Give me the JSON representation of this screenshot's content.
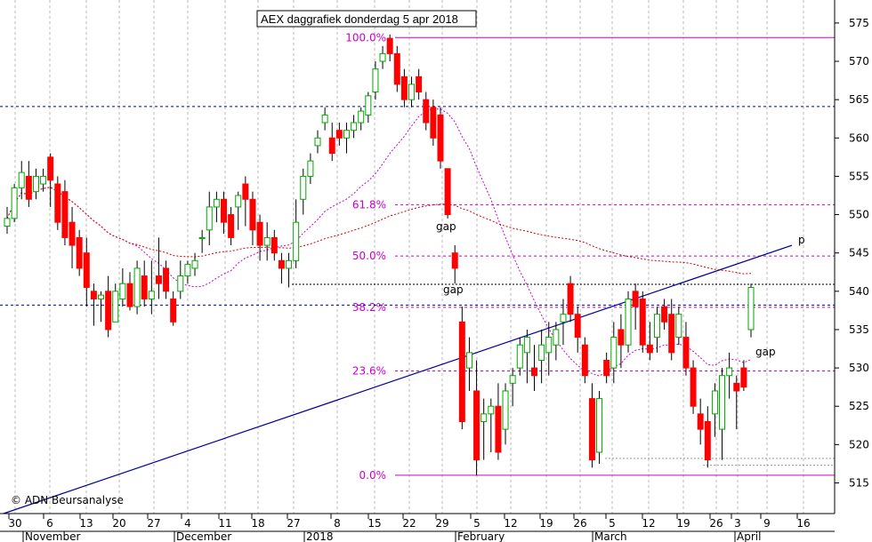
{
  "chart_data": {
    "type": "candlestick",
    "title": "AEX daggrafiek donderdag 5 apr 2018",
    "watermark": "© ADN Beursanalyse",
    "ylim": [
      511,
      578
    ],
    "yticks": [
      515,
      520,
      525,
      530,
      535,
      540,
      545,
      550,
      555,
      560,
      565,
      570,
      575
    ],
    "ytick_labels": [
      "515",
      "520",
      "525",
      "530",
      "535",
      "540",
      "545",
      "550",
      "555",
      "560",
      "565",
      "570",
      "575"
    ],
    "day_ticks": [
      "30",
      "6",
      "13",
      "20",
      "27",
      "4",
      "11",
      "18",
      "27",
      "8",
      "15",
      "22",
      "29",
      "5",
      "12",
      "19",
      "26",
      "5",
      "12",
      "19",
      "26",
      "3",
      "9",
      "16"
    ],
    "month_labels": [
      "November",
      "December",
      "2018",
      "February",
      "March",
      "April"
    ],
    "fib_levels": [
      {
        "label": "100.0%",
        "value": 573.1
      },
      {
        "label": "61.8%",
        "value": 551.3
      },
      {
        "label": "50.0%",
        "value": 544.6
      },
      {
        "label": "38.2%",
        "value": 537.9
      },
      {
        "label": "23.6%",
        "value": 529.6
      },
      {
        "label": "0.0%",
        "value": 516.0
      }
    ],
    "horizontal_levels": [
      564.1,
      538.2,
      540.9
    ],
    "trendline": {
      "label": "p",
      "start": 511.0,
      "end": 546.0
    },
    "annotations": [
      "gap",
      "gap",
      "gap"
    ],
    "colors": {
      "up": "#00aa00",
      "down": "#ff0000",
      "fib": "#cc00cc",
      "trend": "#000099",
      "level": "#000099",
      "ma_short": "#cc00cc",
      "ma_long": "#cc0000",
      "grid": "#b8b8b8"
    },
    "candles": [
      {
        "o": 548.5,
        "h": 551,
        "l": 547.5,
        "c": 549.5
      },
      {
        "o": 549.5,
        "h": 554,
        "l": 549,
        "c": 553.5
      },
      {
        "o": 553.5,
        "h": 557,
        "l": 552,
        "c": 555.5
      },
      {
        "o": 555,
        "h": 557,
        "l": 551,
        "c": 552
      },
      {
        "o": 553,
        "h": 556,
        "l": 552,
        "c": 555
      },
      {
        "o": 554,
        "h": 556,
        "l": 553,
        "c": 555
      },
      {
        "o": 557.5,
        "h": 558,
        "l": 551,
        "c": 554.5
      },
      {
        "o": 554,
        "h": 555,
        "l": 548,
        "c": 549
      },
      {
        "o": 553,
        "h": 554.5,
        "l": 546,
        "c": 547
      },
      {
        "o": 549,
        "h": 551,
        "l": 543,
        "c": 546
      },
      {
        "o": 547,
        "h": 548,
        "l": 542,
        "c": 543
      },
      {
        "o": 545,
        "h": 547,
        "l": 538,
        "c": 540.5
      },
      {
        "o": 540,
        "h": 541,
        "l": 535.5,
        "c": 539
      },
      {
        "o": 539,
        "h": 540,
        "l": 536,
        "c": 539.5
      },
      {
        "o": 540,
        "h": 542,
        "l": 534,
        "c": 535
      },
      {
        "o": 536,
        "h": 541,
        "l": 536,
        "c": 540
      },
      {
        "o": 539,
        "h": 543,
        "l": 538,
        "c": 541
      },
      {
        "o": 541,
        "h": 542.5,
        "l": 537.5,
        "c": 538
      },
      {
        "o": 538,
        "h": 544,
        "l": 537,
        "c": 543
      },
      {
        "o": 542,
        "h": 544,
        "l": 538,
        "c": 539
      },
      {
        "o": 539,
        "h": 544,
        "l": 537,
        "c": 540
      },
      {
        "o": 542,
        "h": 547,
        "l": 539,
        "c": 541
      },
      {
        "o": 543,
        "h": 544,
        "l": 539,
        "c": 540
      },
      {
        "o": 539,
        "h": 540,
        "l": 535.5,
        "c": 536
      },
      {
        "o": 540,
        "h": 544,
        "l": 539,
        "c": 542
      },
      {
        "o": 542,
        "h": 544,
        "l": 541,
        "c": 543.5
      },
      {
        "o": 543,
        "h": 545,
        "l": 542,
        "c": 544
      },
      {
        "o": 547,
        "h": 548,
        "l": 545,
        "c": 547
      },
      {
        "o": 548,
        "h": 553,
        "l": 546,
        "c": 551
      },
      {
        "o": 551,
        "h": 553,
        "l": 549,
        "c": 552
      },
      {
        "o": 552,
        "h": 553,
        "l": 547.5,
        "c": 549
      },
      {
        "o": 550,
        "h": 551,
        "l": 546,
        "c": 547
      },
      {
        "o": 551,
        "h": 553,
        "l": 548,
        "c": 552.5
      },
      {
        "o": 554,
        "h": 555,
        "l": 548.5,
        "c": 552
      },
      {
        "o": 552,
        "h": 553,
        "l": 546,
        "c": 548
      },
      {
        "o": 549,
        "h": 550,
        "l": 544,
        "c": 546
      },
      {
        "o": 546,
        "h": 549,
        "l": 544,
        "c": 547
      },
      {
        "o": 547,
        "h": 548,
        "l": 544,
        "c": 545
      },
      {
        "o": 544,
        "h": 545,
        "l": 541,
        "c": 543
      },
      {
        "o": 543,
        "h": 545,
        "l": 540.5,
        "c": 544
      },
      {
        "o": 544,
        "h": 552,
        "l": 543,
        "c": 549
      },
      {
        "o": 552,
        "h": 556,
        "l": 550,
        "c": 555
      },
      {
        "o": 555,
        "h": 558,
        "l": 554,
        "c": 557
      },
      {
        "o": 559,
        "h": 561,
        "l": 558,
        "c": 560
      },
      {
        "o": 562,
        "h": 564,
        "l": 561,
        "c": 563
      },
      {
        "o": 560,
        "h": 562,
        "l": 557,
        "c": 558
      },
      {
        "o": 561,
        "h": 562,
        "l": 559,
        "c": 560
      },
      {
        "o": 560,
        "h": 562,
        "l": 558,
        "c": 561
      },
      {
        "o": 561,
        "h": 563,
        "l": 560,
        "c": 562
      },
      {
        "o": 562,
        "h": 564,
        "l": 561,
        "c": 563.5
      },
      {
        "o": 563,
        "h": 566,
        "l": 562,
        "c": 565.5
      },
      {
        "o": 566,
        "h": 570,
        "l": 565,
        "c": 569
      },
      {
        "o": 570,
        "h": 572,
        "l": 569,
        "c": 571
      },
      {
        "o": 573,
        "h": 573.5,
        "l": 570,
        "c": 571
      },
      {
        "o": 571,
        "h": 572,
        "l": 566,
        "c": 567
      },
      {
        "o": 568,
        "h": 569,
        "l": 564,
        "c": 565
      },
      {
        "o": 565,
        "h": 568,
        "l": 564,
        "c": 567
      },
      {
        "o": 568,
        "h": 569,
        "l": 565,
        "c": 566
      },
      {
        "o": 565,
        "h": 566,
        "l": 561,
        "c": 562
      },
      {
        "o": 564,
        "h": 565,
        "l": 559,
        "c": 560
      },
      {
        "o": 563,
        "h": 564,
        "l": 556,
        "c": 557
      },
      {
        "o": 556,
        "h": 556,
        "l": 549.5,
        "c": 550
      },
      {
        "o": 545,
        "h": 546,
        "l": 541,
        "c": 543
      },
      {
        "o": 536,
        "h": 538,
        "l": 522,
        "c": 523
      },
      {
        "o": 530,
        "h": 534,
        "l": 527,
        "c": 532
      },
      {
        "o": 527,
        "h": 531,
        "l": 516,
        "c": 518
      },
      {
        "o": 523,
        "h": 526,
        "l": 518,
        "c": 524
      },
      {
        "o": 524,
        "h": 526,
        "l": 519,
        "c": 525
      },
      {
        "o": 525,
        "h": 528,
        "l": 518,
        "c": 519
      },
      {
        "o": 522,
        "h": 528,
        "l": 520,
        "c": 527
      },
      {
        "o": 528,
        "h": 530,
        "l": 525,
        "c": 529
      },
      {
        "o": 530,
        "h": 534,
        "l": 529,
        "c": 533
      },
      {
        "o": 532,
        "h": 535,
        "l": 528,
        "c": 534
      },
      {
        "o": 530,
        "h": 533,
        "l": 527,
        "c": 529
      },
      {
        "o": 531,
        "h": 535,
        "l": 528,
        "c": 533
      },
      {
        "o": 532,
        "h": 536,
        "l": 529,
        "c": 534
      },
      {
        "o": 533,
        "h": 536,
        "l": 531,
        "c": 535
      },
      {
        "o": 536,
        "h": 539,
        "l": 533,
        "c": 537
      },
      {
        "o": 541,
        "h": 542,
        "l": 536,
        "c": 537
      },
      {
        "o": 537,
        "h": 538,
        "l": 532,
        "c": 534
      },
      {
        "o": 533,
        "h": 534,
        "l": 528,
        "c": 529
      },
      {
        "o": 526,
        "h": 528,
        "l": 517,
        "c": 518
      },
      {
        "o": 519,
        "h": 527,
        "l": 517.5,
        "c": 526
      },
      {
        "o": 531,
        "h": 532,
        "l": 528,
        "c": 529
      },
      {
        "o": 530,
        "h": 536,
        "l": 528,
        "c": 534
      },
      {
        "o": 535,
        "h": 537,
        "l": 530,
        "c": 533
      },
      {
        "o": 533,
        "h": 540,
        "l": 532,
        "c": 539
      },
      {
        "o": 540,
        "h": 541,
        "l": 535,
        "c": 538
      },
      {
        "o": 539,
        "h": 540,
        "l": 532,
        "c": 533
      },
      {
        "o": 533,
        "h": 536,
        "l": 531,
        "c": 532
      },
      {
        "o": 534,
        "h": 538,
        "l": 532,
        "c": 537
      },
      {
        "o": 538,
        "h": 539,
        "l": 535,
        "c": 536
      },
      {
        "o": 537,
        "h": 539,
        "l": 531,
        "c": 532
      },
      {
        "o": 534,
        "h": 538,
        "l": 533,
        "c": 537
      },
      {
        "o": 534,
        "h": 536,
        "l": 529,
        "c": 530
      },
      {
        "o": 530,
        "h": 531,
        "l": 524,
        "c": 525
      },
      {
        "o": 524,
        "h": 526,
        "l": 520,
        "c": 522
      },
      {
        "o": 523,
        "h": 525,
        "l": 517,
        "c": 518
      },
      {
        "o": 524,
        "h": 528,
        "l": 521,
        "c": 527
      },
      {
        "o": 522,
        "h": 530,
        "l": 518,
        "c": 529
      },
      {
        "o": 529,
        "h": 532,
        "l": 526,
        "c": 530
      },
      {
        "o": 528,
        "h": 529,
        "l": 522,
        "c": 527
      },
      {
        "o": 530,
        "h": 531,
        "l": 527,
        "c": 527.5
      },
      {
        "o": 535,
        "h": 541,
        "l": 534,
        "c": 540.5
      }
    ]
  }
}
